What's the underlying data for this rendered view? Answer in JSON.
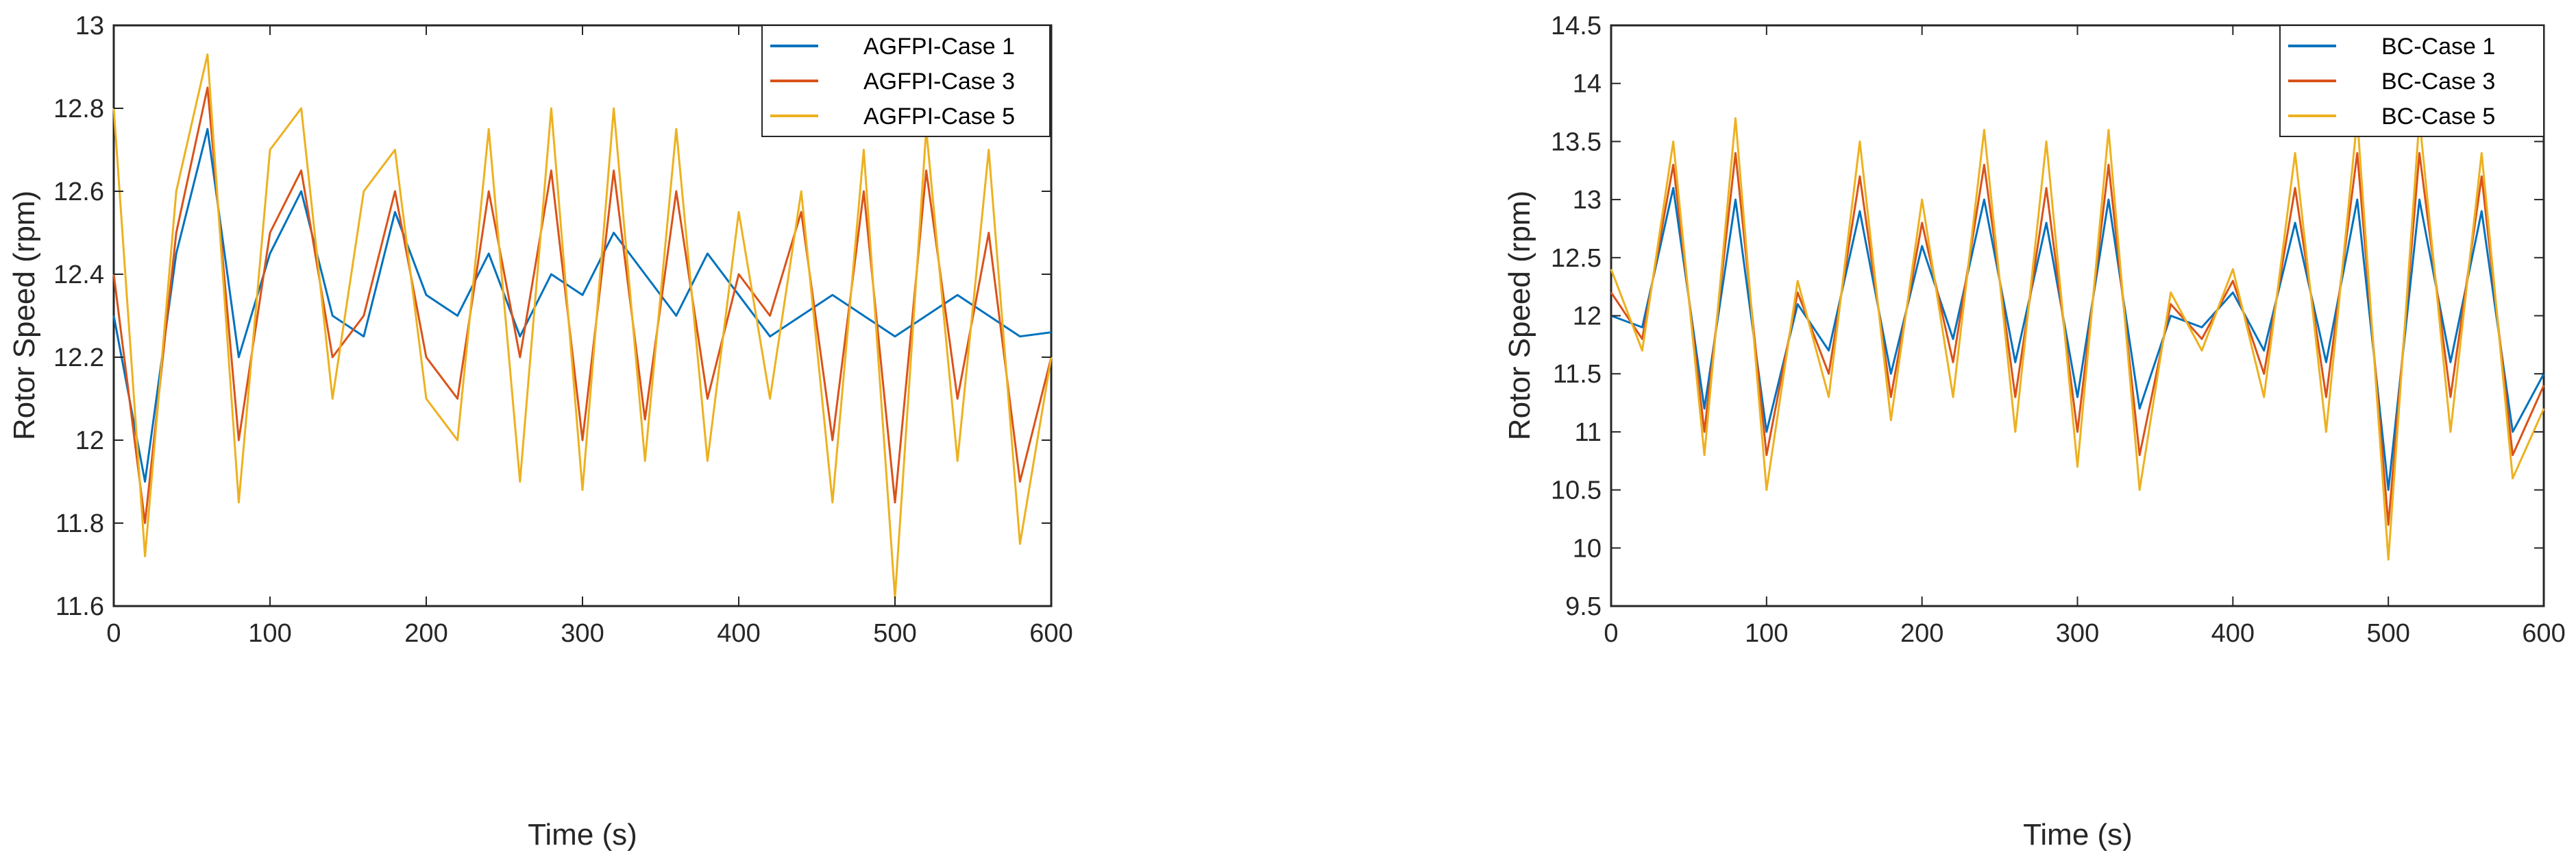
{
  "chart_data": [
    {
      "type": "line",
      "title": "",
      "xlabel": "Time (s)",
      "ylabel": "Rotor Speed (rpm)",
      "xlim": [
        0,
        600
      ],
      "ylim": [
        11.6,
        13
      ],
      "xticks": [
        0,
        100,
        200,
        300,
        400,
        500,
        600
      ],
      "yticks": [
        11.6,
        11.8,
        12,
        12.2,
        12.4,
        12.6,
        12.8,
        13
      ],
      "ytick_labels": [
        "11.6",
        "11.8",
        "12",
        "12.2",
        "12.4",
        "12.6",
        "12.8",
        "13"
      ],
      "legend_position": "top-right",
      "grid": false,
      "x": [
        0,
        20,
        40,
        60,
        80,
        100,
        120,
        140,
        160,
        180,
        200,
        220,
        240,
        260,
        280,
        300,
        320,
        340,
        360,
        380,
        400,
        420,
        440,
        460,
        480,
        500,
        520,
        540,
        560,
        580,
        600
      ],
      "series": [
        {
          "name": "AGFPI-Case 1",
          "color": "#0072BD",
          "values": [
            12.3,
            11.9,
            12.45,
            12.75,
            12.2,
            12.45,
            12.6,
            12.3,
            12.25,
            12.55,
            12.35,
            12.3,
            12.45,
            12.25,
            12.4,
            12.35,
            12.5,
            12.4,
            12.3,
            12.45,
            12.35,
            12.25,
            12.3,
            12.35,
            12.3,
            12.25,
            12.3,
            12.35,
            12.3,
            12.25,
            12.26
          ]
        },
        {
          "name": "AGFPI-Case 3",
          "color": "#D95319",
          "values": [
            12.4,
            11.8,
            12.5,
            12.85,
            12.0,
            12.5,
            12.65,
            12.2,
            12.3,
            12.6,
            12.2,
            12.1,
            12.6,
            12.2,
            12.65,
            12.0,
            12.65,
            12.05,
            12.6,
            12.1,
            12.4,
            12.3,
            12.55,
            12.0,
            12.6,
            11.85,
            12.65,
            12.1,
            12.5,
            11.9,
            12.2
          ]
        },
        {
          "name": "AGFPI-Case 5",
          "color": "#EDB120",
          "values": [
            12.8,
            11.72,
            12.6,
            12.93,
            11.85,
            12.7,
            12.8,
            12.1,
            12.6,
            12.7,
            12.1,
            12.0,
            12.75,
            11.9,
            12.8,
            11.88,
            12.8,
            11.95,
            12.75,
            11.95,
            12.55,
            12.1,
            12.6,
            11.85,
            12.7,
            11.62,
            12.75,
            11.95,
            12.7,
            11.75,
            12.2
          ]
        }
      ]
    },
    {
      "type": "line",
      "title": "",
      "xlabel": "Time (s)",
      "ylabel": "Rotor Speed (rpm)",
      "xlim": [
        0,
        600
      ],
      "ylim": [
        9.5,
        14.5
      ],
      "xticks": [
        0,
        100,
        200,
        300,
        400,
        500,
        600
      ],
      "yticks": [
        9.5,
        10,
        10.5,
        11,
        11.5,
        12,
        12.5,
        13,
        13.5,
        14,
        14.5
      ],
      "ytick_labels": [
        "9.5",
        "10",
        "10.5",
        "11",
        "11.5",
        "12",
        "12.5",
        "13",
        "13.5",
        "14",
        "14.5"
      ],
      "legend_position": "top-right",
      "grid": false,
      "x": [
        0,
        20,
        40,
        60,
        80,
        100,
        120,
        140,
        160,
        180,
        200,
        220,
        240,
        260,
        280,
        300,
        320,
        340,
        360,
        380,
        400,
        420,
        440,
        460,
        480,
        500,
        520,
        540,
        560,
        580,
        600
      ],
      "series": [
        {
          "name": "BC-Case 1",
          "color": "#0072BD",
          "values": [
            12.0,
            11.9,
            13.1,
            11.2,
            13.0,
            11.0,
            12.1,
            11.7,
            12.9,
            11.5,
            12.6,
            11.8,
            13.0,
            11.6,
            12.8,
            11.3,
            13.0,
            11.2,
            12.0,
            11.9,
            12.2,
            11.7,
            12.8,
            11.6,
            13.0,
            10.5,
            13.0,
            11.6,
            12.9,
            11.0,
            11.5
          ]
        },
        {
          "name": "BC-Case 3",
          "color": "#D95319",
          "values": [
            12.2,
            11.8,
            13.3,
            11.0,
            13.4,
            10.8,
            12.2,
            11.5,
            13.2,
            11.3,
            12.8,
            11.6,
            13.3,
            11.3,
            13.1,
            11.0,
            13.3,
            10.8,
            12.1,
            11.8,
            12.3,
            11.5,
            13.1,
            11.3,
            13.4,
            10.2,
            13.4,
            11.3,
            13.2,
            10.8,
            11.4
          ]
        },
        {
          "name": "BC-Case 5",
          "color": "#EDB120",
          "values": [
            12.4,
            11.7,
            13.5,
            10.8,
            13.7,
            10.5,
            12.3,
            11.3,
            13.5,
            11.1,
            13.0,
            11.3,
            13.6,
            11.0,
            13.5,
            10.7,
            13.6,
            10.5,
            12.2,
            11.7,
            12.4,
            11.3,
            13.4,
            11.0,
            13.7,
            9.9,
            13.7,
            11.0,
            13.4,
            10.6,
            11.2
          ]
        }
      ]
    }
  ]
}
